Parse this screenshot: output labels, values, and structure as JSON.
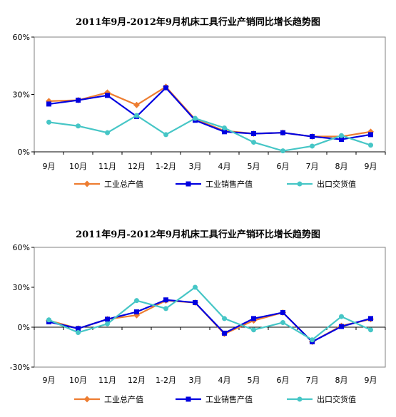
{
  "chart_data": [
    {
      "type": "line",
      "title": "2011年9月-2012年9月机床工具行业产销同比增长趋势图",
      "categories": [
        "9月",
        "10月",
        "11月",
        "12月",
        "1-2月",
        "3月",
        "4月",
        "5月",
        "6月",
        "7月",
        "8月",
        "9月"
      ],
      "yticks": [
        "60%",
        "30%",
        "0%"
      ],
      "ylim": [
        0,
        60
      ],
      "series": [
        {
          "name": "工业总产值",
          "color": "#ED7D31",
          "marker": "diamond",
          "values": [
            26.5,
            27,
            31,
            24.5,
            34,
            17,
            11,
            9.5,
            10,
            8,
            8,
            10.5
          ]
        },
        {
          "name": "工业销售产值",
          "color": "#0000E0",
          "marker": "square",
          "values": [
            25,
            27,
            29.5,
            18.5,
            33.5,
            16.5,
            10.5,
            9.5,
            10,
            8,
            6.5,
            9
          ]
        },
        {
          "name": "出口交货值",
          "color": "#46C6C6",
          "marker": "circle",
          "values": [
            15.5,
            13.5,
            10,
            19,
            9,
            17.5,
            12.5,
            5,
            0.5,
            3,
            8.5,
            3.5
          ]
        }
      ]
    },
    {
      "type": "line",
      "title": "2011年9月-2012年9月机床工具行业产销环比增长趋势图",
      "categories": [
        "9月",
        "10月",
        "11月",
        "12月",
        "1-2月",
        "3月",
        "4月",
        "5月",
        "6月",
        "7月",
        "8月",
        "9月"
      ],
      "yticks": [
        "60%",
        "30%",
        "0%",
        "-30%"
      ],
      "ylim": [
        -30,
        60
      ],
      "series": [
        {
          "name": "工业总产值",
          "color": "#ED7D31",
          "marker": "diamond",
          "values": [
            5,
            -1,
            6,
            9,
            20,
            18.5,
            -5,
            5,
            11,
            -11,
            1,
            6
          ]
        },
        {
          "name": "工业销售产值",
          "color": "#0000E0",
          "marker": "square",
          "values": [
            4,
            -1,
            6,
            11.5,
            20.5,
            18.5,
            -4.5,
            6.5,
            11,
            -11,
            0.5,
            6.5
          ]
        },
        {
          "name": "出口交货值",
          "color": "#46C6C6",
          "marker": "circle",
          "values": [
            5.5,
            -4,
            2.5,
            20,
            14,
            30,
            6.5,
            -2,
            3.5,
            -9.5,
            8,
            -2
          ]
        }
      ]
    }
  ]
}
